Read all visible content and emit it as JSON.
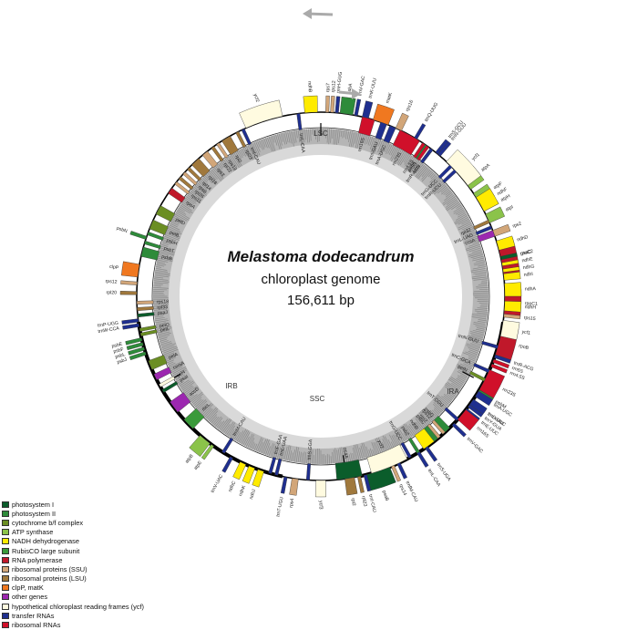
{
  "center": {
    "title": "Melastoma dodecandrum",
    "subtitle": "chloroplast genome",
    "size": "156,611 bp"
  },
  "regions": {
    "lsc": "LSC",
    "ira": "IRA",
    "ssc": "SSC",
    "irb": "IRB"
  },
  "categories": {
    "psI": "#0b5d2b",
    "psII": "#2e8b3a",
    "cytb6f": "#6b8e23",
    "atp": "#8bc34a",
    "ndh": "#ffeb00",
    "rbcl": "#3a9a3a",
    "rpo": "#c0182a",
    "ssu": "#d2a679",
    "lsu": "#a0783c",
    "clp": "#f07820",
    "other": "#9c27b0",
    "ycf": "#fffbe0",
    "trna": "#1f2f8f",
    "rrna": "#d0102a"
  },
  "legend": [
    {
      "label": "photosystem I",
      "color": "#0b5d2b"
    },
    {
      "label": "photosystem II",
      "color": "#2e8b3a"
    },
    {
      "label": "cytochrome b/f complex",
      "color": "#6b8e23"
    },
    {
      "label": "ATP synthase",
      "color": "#8bc34a"
    },
    {
      "label": "NADH dehydrogenase",
      "color": "#ffeb00"
    },
    {
      "label": "RubisCO large subunit",
      "color": "#3a9a3a"
    },
    {
      "label": "RNA polymerase",
      "color": "#c0182a"
    },
    {
      "label": "ribosomal proteins (SSU)",
      "color": "#d2a679"
    },
    {
      "label": "ribosomal proteins (LSU)",
      "color": "#a0783c"
    },
    {
      "label": "clpP, matK",
      "color": "#f07820"
    },
    {
      "label": "other genes",
      "color": "#9c27b0"
    },
    {
      "label": "hypothetical chloroplast reading frames (ycf)",
      "color": "#fffbe0"
    },
    {
      "label": "transfer RNAs",
      "color": "#1f2f8f"
    },
    {
      "label": "ribosomal RNAs",
      "color": "#d0102a"
    }
  ],
  "genes": [
    {
      "name": "trnH-GUG",
      "angle": 5,
      "width": 1,
      "side": "out",
      "cat": "trna"
    },
    {
      "name": "psbA",
      "angle": 8,
      "width": 4,
      "side": "out",
      "cat": "psII"
    },
    {
      "name": "trnK-UUU",
      "angle": 14,
      "width": 2,
      "side": "out",
      "cat": "trna"
    },
    {
      "name": "matK",
      "angle": 19,
      "width": 5,
      "side": "out",
      "cat": "clp"
    },
    {
      "name": "rps16",
      "angle": 25,
      "width": 2,
      "side": "out",
      "cat": "ssu"
    },
    {
      "name": "trnQ-UUG",
      "angle": 31,
      "width": 1,
      "side": "out",
      "cat": "trna"
    },
    {
      "name": "psbK",
      "angle": 35,
      "width": 1,
      "side": "in",
      "cat": "psII"
    },
    {
      "name": "psbI",
      "angle": 37,
      "width": 1,
      "side": "in",
      "cat": "psII"
    },
    {
      "name": "trnS-GCU",
      "angle": 39,
      "width": 1,
      "side": "out",
      "cat": "trna"
    },
    {
      "name": "trnG-UCC",
      "angle": 45,
      "width": 1,
      "side": "in",
      "cat": "trna"
    },
    {
      "name": "trnR-UCU",
      "angle": 47,
      "width": 1,
      "side": "in",
      "cat": "trna"
    },
    {
      "name": "atpA",
      "angle": 52,
      "width": 5,
      "side": "out",
      "cat": "atp"
    },
    {
      "name": "atpF",
      "angle": 58,
      "width": 4,
      "side": "out",
      "cat": "atp"
    },
    {
      "name": "atpH",
      "angle": 62,
      "width": 1,
      "side": "out",
      "cat": "atp"
    },
    {
      "name": "atpI",
      "angle": 65,
      "width": 3,
      "side": "out",
      "cat": "atp"
    },
    {
      "name": "rps2",
      "angle": 70,
      "width": 2,
      "side": "out",
      "cat": "ssu"
    },
    {
      "name": "rpoC2",
      "angle": 78,
      "width": 10,
      "side": "out",
      "cat": "rpo"
    },
    {
      "name": "rpoC1",
      "angle": 92,
      "width": 8,
      "side": "out",
      "cat": "rpo"
    },
    {
      "name": "rpoB",
      "angle": 104,
      "width": 9,
      "side": "out",
      "cat": "rpo"
    },
    {
      "name": "trnC-GCA",
      "angle": 114,
      "width": 1,
      "side": "in",
      "cat": "trna"
    },
    {
      "name": "petN",
      "angle": 117,
      "width": 1,
      "side": "in",
      "cat": "cytb6f"
    },
    {
      "name": "psbM",
      "angle": 121,
      "width": 1,
      "side": "out",
      "cat": "psII"
    },
    {
      "name": "trnD-GUC",
      "angle": 125,
      "width": 1,
      "side": "out",
      "cat": "trna"
    },
    {
      "name": "trnY-GUA",
      "angle": 126.5,
      "width": 1,
      "side": "out",
      "cat": "trna"
    },
    {
      "name": "trnE-UUC",
      "angle": 128,
      "width": 1,
      "side": "out",
      "cat": "trna"
    },
    {
      "name": "trnT-GGU",
      "angle": 132,
      "width": 1,
      "side": "in",
      "cat": "trna"
    },
    {
      "name": "psbD",
      "angle": 137,
      "width": 3,
      "side": "in",
      "cat": "psII"
    },
    {
      "name": "psbC",
      "angle": 141,
      "width": 3,
      "side": "in",
      "cat": "psII"
    },
    {
      "name": "trnS-UGA",
      "angle": 145,
      "width": 1,
      "side": "out",
      "cat": "trna"
    },
    {
      "name": "psbZ",
      "angle": 148,
      "width": 1,
      "side": "in",
      "cat": "psII"
    },
    {
      "name": "trnG-UCC",
      "angle": 151,
      "width": 1,
      "side": "in",
      "cat": "trna"
    },
    {
      "name": "trnfM-CAU",
      "angle": 155,
      "width": 1,
      "side": "out",
      "cat": "trna"
    },
    {
      "name": "rps14",
      "angle": 157,
      "width": 1,
      "side": "out",
      "cat": "ssu"
    },
    {
      "name": "psaB",
      "angle": 162,
      "width": 8,
      "side": "out",
      "cat": "psI"
    },
    {
      "name": "psaA",
      "angle": 171,
      "width": 8,
      "side": "in",
      "cat": "psI"
    },
    {
      "name": "ycf3",
      "angle": 180,
      "width": 3,
      "side": "out",
      "cat": "ycf"
    },
    {
      "name": "trnS-GGA",
      "angle": 184,
      "width": 1,
      "side": "in",
      "cat": "trna"
    },
    {
      "name": "rps4",
      "angle": 188,
      "width": 2,
      "side": "out",
      "cat": "ssu"
    },
    {
      "name": "trnT-UGU",
      "angle": 191,
      "width": 1,
      "side": "out",
      "cat": "trna"
    },
    {
      "name": "trnL-UAA",
      "angle": 194,
      "width": 1,
      "side": "in",
      "cat": "trna"
    },
    {
      "name": "trnF-GAA",
      "angle": 196,
      "width": 1,
      "side": "in",
      "cat": "trna"
    },
    {
      "name": "ndhJ",
      "angle": 199,
      "width": 2,
      "side": "out",
      "cat": "ndh"
    },
    {
      "name": "ndhK",
      "angle": 202,
      "width": 2,
      "side": "out",
      "cat": "ndh"
    },
    {
      "name": "ndhC",
      "angle": 205,
      "width": 2,
      "side": "out",
      "cat": "ndh"
    },
    {
      "name": "trnV-UAC",
      "angle": 209,
      "width": 1,
      "side": "out",
      "cat": "trna"
    },
    {
      "name": "trnM-CAU",
      "angle": 212,
      "width": 1,
      "side": "in",
      "cat": "trna"
    },
    {
      "name": "atpE",
      "angle": 216,
      "width": 1,
      "side": "out",
      "cat": "atp"
    },
    {
      "name": "atpB",
      "angle": 219,
      "width": 4,
      "side": "out",
      "cat": "atp"
    },
    {
      "name": "rbcL",
      "angle": 226,
      "width": 4,
      "side": "in",
      "cat": "rbcl"
    },
    {
      "name": "accD",
      "angle": 233,
      "width": 4,
      "side": "in",
      "cat": "other"
    },
    {
      "name": "psaI",
      "angle": 239,
      "width": 1,
      "side": "in",
      "cat": "psI"
    },
    {
      "name": "ycf4",
      "angle": 241,
      "width": 1,
      "side": "in",
      "cat": "ycf"
    },
    {
      "name": "cemA",
      "angle": 244,
      "width": 2,
      "side": "in",
      "cat": "other"
    },
    {
      "name": "petA",
      "angle": 248,
      "width": 3,
      "side": "in",
      "cat": "cytb6f"
    },
    {
      "name": "psbJ",
      "angle": 252,
      "width": 1,
      "side": "out",
      "cat": "psII"
    },
    {
      "name": "psbL",
      "angle": 253.5,
      "width": 1,
      "side": "out",
      "cat": "psII"
    },
    {
      "name": "psbF",
      "angle": 255,
      "width": 1,
      "side": "out",
      "cat": "psII"
    },
    {
      "name": "psbE",
      "angle": 256.5,
      "width": 1,
      "side": "out",
      "cat": "psII"
    },
    {
      "name": "petL",
      "angle": 258,
      "width": 1,
      "side": "in",
      "cat": "cytb6f"
    },
    {
      "name": "petG",
      "angle": 259.5,
      "width": 1,
      "side": "in",
      "cat": "cytb6f"
    },
    {
      "name": "trnW-CCA",
      "angle": 261,
      "width": 1,
      "side": "out",
      "cat": "trna"
    },
    {
      "name": "trnP-UGG",
      "angle": 262.5,
      "width": 1,
      "side": "out",
      "cat": "trna"
    },
    {
      "name": "psaJ",
      "angle": 264,
      "width": 1,
      "side": "in",
      "cat": "psI"
    },
    {
      "name": "rpl33",
      "angle": 266,
      "width": 1,
      "side": "in",
      "cat": "lsu"
    },
    {
      "name": "rps18",
      "angle": 268,
      "width": 1,
      "side": "in",
      "cat": "ssu"
    },
    {
      "name": "rpl20",
      "angle": 271,
      "width": 1,
      "side": "out",
      "cat": "lsu"
    },
    {
      "name": "rps12",
      "angle": 274,
      "width": 1,
      "side": "out",
      "cat": "ssu"
    },
    {
      "name": "clpP",
      "angle": 278,
      "width": 4,
      "side": "out",
      "cat": "clp"
    },
    {
      "name": "psbB",
      "angle": 284,
      "width": 3,
      "side": "in",
      "cat": "psII"
    },
    {
      "name": "psbT",
      "angle": 287,
      "width": 1,
      "side": "in",
      "cat": "psII"
    },
    {
      "name": "psbN",
      "angle": 288.5,
      "width": 1,
      "side": "out",
      "cat": "psII"
    },
    {
      "name": "psbH",
      "angle": 290,
      "width": 1,
      "side": "in",
      "cat": "psII"
    },
    {
      "name": "petB",
      "angle": 293,
      "width": 3,
      "side": "in",
      "cat": "cytb6f"
    },
    {
      "name": "petD",
      "angle": 298,
      "width": 3,
      "side": "in",
      "cat": "cytb6f"
    },
    {
      "name": "rpoA",
      "angle": 305,
      "width": 2,
      "side": "in",
      "cat": "rpo"
    },
    {
      "name": "rps11",
      "angle": 308,
      "width": 1,
      "side": "in",
      "cat": "ssu"
    },
    {
      "name": "rpl36",
      "angle": 310,
      "width": 1,
      "side": "in",
      "cat": "lsu"
    },
    {
      "name": "rps8",
      "angle": 312,
      "width": 1,
      "side": "in",
      "cat": "ssu"
    },
    {
      "name": "rpl14",
      "angle": 314,
      "width": 1,
      "side": "in",
      "cat": "lsu"
    },
    {
      "name": "rpl16",
      "angle": 317,
      "width": 3,
      "side": "in",
      "cat": "lsu"
    },
    {
      "name": "rps3",
      "angle": 321,
      "width": 2,
      "side": "in",
      "cat": "ssu"
    },
    {
      "name": "rpl22",
      "angle": 324,
      "width": 1,
      "side": "in",
      "cat": "lsu"
    },
    {
      "name": "rps19",
      "angle": 326,
      "width": 1,
      "side": "in",
      "cat": "ssu"
    },
    {
      "name": "rpl2",
      "angle": 329,
      "width": 3,
      "side": "in",
      "cat": "lsu"
    },
    {
      "name": "rpl23",
      "angle": 333,
      "width": 1,
      "side": "in",
      "cat": "lsu"
    },
    {
      "name": "trnI-CAU",
      "angle": 335,
      "width": 1,
      "side": "in",
      "cat": "trna"
    },
    {
      "name": "ycf2",
      "angle": 342,
      "width": 12,
      "side": "out",
      "cat": "ycf"
    },
    {
      "name": "trnL-CAA",
      "angle": 353,
      "width": 1,
      "side": "in",
      "cat": "trna"
    },
    {
      "name": "ndhB",
      "angle": 357,
      "width": 4,
      "side": "out",
      "cat": "ndh"
    },
    {
      "name": "rps7",
      "angle": 2,
      "width": 1,
      "side": "out",
      "cat": "ssu"
    },
    {
      "name": "rps12",
      "angle": 3.5,
      "width": 1,
      "side": "out",
      "cat": "ssu"
    },
    {
      "name": "trnV-GAC",
      "angle": 11,
      "width": 1,
      "side": "out",
      "cat": "trna"
    },
    {
      "name": "rrn16S",
      "angle": 15,
      "width": 4,
      "side": "in",
      "cat": "rrna"
    },
    {
      "name": "trnI-GAU",
      "angle": 20,
      "width": 2,
      "side": "in",
      "cat": "trna"
    },
    {
      "name": "trnA-UGC",
      "angle": 23,
      "width": 2,
      "side": "in",
      "cat": "trna"
    },
    {
      "name": "rrn23S",
      "angle": 29,
      "width": 7,
      "side": "in",
      "cat": "rrna"
    },
    {
      "name": "rrn4.5S",
      "angle": 34,
      "width": 1,
      "side": "in",
      "cat": "rrna"
    },
    {
      "name": "rrn5S",
      "angle": 35.5,
      "width": 1,
      "side": "in",
      "cat": "rrna"
    },
    {
      "name": "trnR-ACG",
      "angle": 37,
      "width": 1,
      "side": "in",
      "cat": "trna"
    },
    {
      "name": "trnN-GUU",
      "angle": 40,
      "width": 1,
      "side": "out",
      "cat": "trna"
    },
    {
      "name": "ycf1",
      "angle": 48,
      "width": 10,
      "side": "out",
      "cat": "ycf"
    },
    {
      "name": "ndhF",
      "angle": 60,
      "width": 5,
      "side": "out",
      "cat": "ndh"
    },
    {
      "name": "rpl32",
      "angle": 66,
      "width": 1,
      "side": "in",
      "cat": "lsu"
    },
    {
      "name": "trnL-UAG",
      "angle": 68,
      "width": 1,
      "side": "in",
      "cat": "trna"
    },
    {
      "name": "ccsA",
      "angle": 70,
      "width": 2,
      "side": "in",
      "cat": "other"
    },
    {
      "name": "ndhD",
      "angle": 74,
      "width": 3,
      "side": "out",
      "cat": "ndh"
    },
    {
      "name": "psaC",
      "angle": 78,
      "width": 1,
      "side": "out",
      "cat": "psI"
    },
    {
      "name": "ndhE",
      "angle": 80,
      "width": 1,
      "side": "out",
      "cat": "ndh"
    },
    {
      "name": "ndhG",
      "angle": 82,
      "width": 1,
      "side": "out",
      "cat": "ndh"
    },
    {
      "name": "ndhI",
      "angle": 84,
      "width": 2,
      "side": "out",
      "cat": "ndh"
    },
    {
      "name": "ndhA",
      "angle": 88,
      "width": 4,
      "side": "out",
      "cat": "ndh"
    },
    {
      "name": "ndhH",
      "angle": 93,
      "width": 3,
      "side": "out",
      "cat": "ndh"
    },
    {
      "name": "rps15",
      "angle": 96,
      "width": 1,
      "side": "out",
      "cat": "ssu"
    },
    {
      "name": "ycf1",
      "angle": 100,
      "width": 5,
      "side": "out",
      "cat": "ycf"
    },
    {
      "name": "trnN-GUU",
      "angle": 106,
      "width": 1,
      "side": "in",
      "cat": "trna"
    },
    {
      "name": "trnR-ACG",
      "angle": 109,
      "width": 1,
      "side": "out",
      "cat": "trna"
    },
    {
      "name": "rrn5S",
      "angle": 110.5,
      "width": 1,
      "side": "out",
      "cat": "rrna"
    },
    {
      "name": "rrn4.5S",
      "angle": 112,
      "width": 1,
      "side": "out",
      "cat": "rrna"
    },
    {
      "name": "rrn23S",
      "angle": 117,
      "width": 7,
      "side": "out",
      "cat": "rrna"
    },
    {
      "name": "trnA-UGC",
      "angle": 122,
      "width": 2,
      "side": "out",
      "cat": "trna"
    },
    {
      "name": "trnI-GAU",
      "angle": 125,
      "width": 2,
      "side": "out",
      "cat": "trna"
    },
    {
      "name": "rrn16S",
      "angle": 130,
      "width": 4,
      "side": "out",
      "cat": "rrna"
    },
    {
      "name": "trnV-GAC",
      "angle": 134,
      "width": 1,
      "side": "out",
      "cat": "trna"
    },
    {
      "name": "rps12",
      "angle": 138,
      "width": 1,
      "side": "in",
      "cat": "ssu"
    },
    {
      "name": "rps7",
      "angle": 140,
      "width": 1,
      "side": "in",
      "cat": "ssu"
    },
    {
      "name": "ndhB",
      "angle": 144,
      "width": 4,
      "side": "in",
      "cat": "ndh"
    },
    {
      "name": "trnL-CAA",
      "angle": 148,
      "width": 1,
      "side": "out",
      "cat": "trna"
    },
    {
      "name": "ycf2",
      "angle": 158,
      "width": 12,
      "side": "in",
      "cat": "ycf"
    },
    {
      "name": "trnI-CAU",
      "angle": 166,
      "width": 1,
      "side": "out",
      "cat": "trna"
    },
    {
      "name": "rpl23",
      "angle": 168,
      "width": 1,
      "side": "out",
      "cat": "lsu"
    },
    {
      "name": "rpl2",
      "angle": 171,
      "width": 3,
      "side": "out",
      "cat": "lsu"
    }
  ]
}
